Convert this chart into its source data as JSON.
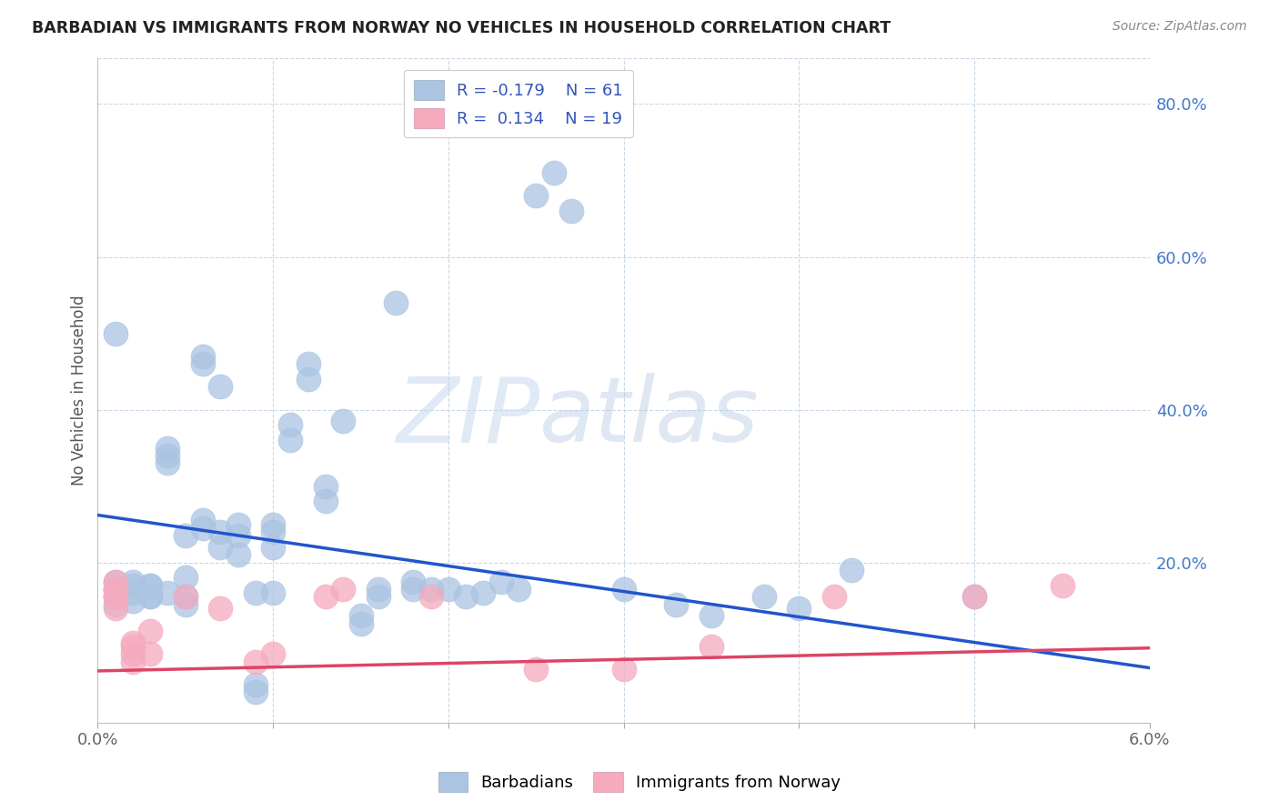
{
  "title": "BARBADIAN VS IMMIGRANTS FROM NORWAY NO VEHICLES IN HOUSEHOLD CORRELATION CHART",
  "source": "Source: ZipAtlas.com",
  "ylabel": "No Vehicles in Household",
  "xlim": [
    0.0,
    0.06
  ],
  "ylim": [
    -0.01,
    0.86
  ],
  "legend_r1": "R = -0.179",
  "legend_n1": "N = 61",
  "legend_r2": "R =  0.134",
  "legend_n2": "N = 19",
  "blue_color": "#aac4e2",
  "pink_color": "#f5aabe",
  "blue_line_color": "#2255cc",
  "pink_line_color": "#dd4466",
  "watermark_zip": "ZIP",
  "watermark_atlas": "atlas",
  "blue_line_x": [
    0.0,
    0.06
  ],
  "blue_line_y": [
    0.262,
    0.062
  ],
  "pink_line_x": [
    0.0,
    0.06
  ],
  "pink_line_y": [
    0.058,
    0.088
  ],
  "barbadians_x": [
    0.001,
    0.002,
    0.003,
    0.003,
    0.003,
    0.004,
    0.004,
    0.004,
    0.005,
    0.005,
    0.005,
    0.006,
    0.006,
    0.007,
    0.007,
    0.007,
    0.008,
    0.008,
    0.008,
    0.009,
    0.009,
    0.009,
    0.01,
    0.01,
    0.01,
    0.01,
    0.011,
    0.011,
    0.012,
    0.012,
    0.013,
    0.013,
    0.014,
    0.015,
    0.015,
    0.016,
    0.016,
    0.017,
    0.018,
    0.018,
    0.019,
    0.02,
    0.021,
    0.022,
    0.023,
    0.024,
    0.025,
    0.026,
    0.027,
    0.03,
    0.033,
    0.035,
    0.038,
    0.04,
    0.043,
    0.05,
    0.003,
    0.004,
    0.005,
    0.006,
    0.006
  ],
  "barbadians_y": [
    0.5,
    0.175,
    0.155,
    0.155,
    0.17,
    0.33,
    0.34,
    0.35,
    0.18,
    0.155,
    0.235,
    0.46,
    0.47,
    0.22,
    0.24,
    0.43,
    0.25,
    0.235,
    0.21,
    0.04,
    0.03,
    0.16,
    0.22,
    0.24,
    0.25,
    0.16,
    0.38,
    0.36,
    0.44,
    0.46,
    0.28,
    0.3,
    0.385,
    0.13,
    0.12,
    0.155,
    0.165,
    0.54,
    0.165,
    0.175,
    0.165,
    0.165,
    0.155,
    0.16,
    0.175,
    0.165,
    0.68,
    0.71,
    0.66,
    0.165,
    0.145,
    0.13,
    0.155,
    0.14,
    0.19,
    0.155,
    0.17,
    0.16,
    0.145,
    0.245,
    0.255
  ],
  "norway_x": [
    0.001,
    0.001,
    0.002,
    0.002,
    0.003,
    0.003,
    0.005,
    0.007,
    0.009,
    0.01,
    0.013,
    0.014,
    0.019,
    0.025,
    0.03,
    0.035,
    0.042,
    0.05,
    0.055
  ],
  "norway_y": [
    0.165,
    0.155,
    0.08,
    0.095,
    0.08,
    0.11,
    0.155,
    0.14,
    0.07,
    0.08,
    0.155,
    0.165,
    0.155,
    0.06,
    0.06,
    0.09,
    0.155,
    0.155,
    0.17
  ],
  "cluster_blue_x": [
    0.001,
    0.001,
    0.001,
    0.001,
    0.002,
    0.002,
    0.002
  ],
  "cluster_blue_y": [
    0.165,
    0.175,
    0.155,
    0.145,
    0.17,
    0.16,
    0.15
  ],
  "cluster_pink_x": [
    0.001,
    0.001,
    0.001,
    0.001,
    0.002,
    0.002
  ],
  "cluster_pink_y": [
    0.165,
    0.155,
    0.14,
    0.175,
    0.07,
    0.09
  ]
}
